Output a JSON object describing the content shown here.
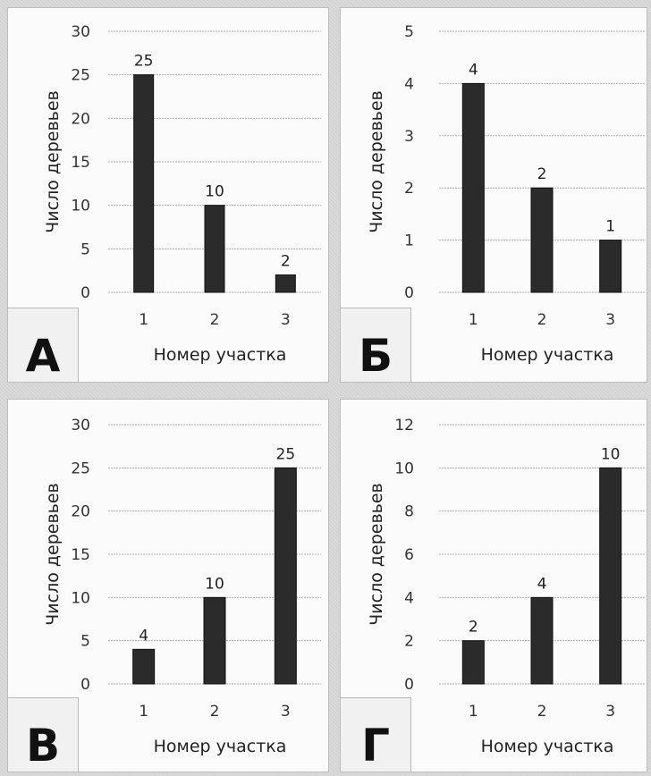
{
  "chart_data": [
    {
      "panel": "А",
      "type": "bar",
      "categories": [
        "1",
        "2",
        "3"
      ],
      "values": [
        25,
        10,
        2
      ],
      "data_labels": [
        "25",
        "10",
        "2"
      ],
      "xlabel": "Номер участка",
      "ylabel": "Число деревьев",
      "ylim": [
        0,
        30
      ],
      "yticks": [
        "0",
        "5",
        "10",
        "15",
        "20",
        "25",
        "30"
      ],
      "grid": true
    },
    {
      "panel": "Б",
      "type": "bar",
      "categories": [
        "1",
        "2",
        "3"
      ],
      "values": [
        4,
        2,
        1
      ],
      "data_labels": [
        "4",
        "2",
        "1"
      ],
      "xlabel": "Номер участка",
      "ylabel": "Число деревьев",
      "ylim": [
        0,
        5
      ],
      "yticks": [
        "0",
        "1",
        "2",
        "3",
        "4",
        "5"
      ],
      "grid": true
    },
    {
      "panel": "В",
      "type": "bar",
      "categories": [
        "1",
        "2",
        "3"
      ],
      "values": [
        4,
        10,
        25
      ],
      "data_labels": [
        "4",
        "10",
        "25"
      ],
      "xlabel": "Номер участка",
      "ylabel": "Число деревьев",
      "ylim": [
        0,
        30
      ],
      "yticks": [
        "0",
        "5",
        "10",
        "15",
        "20",
        "25",
        "30"
      ],
      "grid": true
    },
    {
      "panel": "Г",
      "type": "bar",
      "categories": [
        "1",
        "2",
        "3"
      ],
      "values": [
        2,
        4,
        10
      ],
      "data_labels": [
        "2",
        "4",
        "10"
      ],
      "xlabel": "Номер участка",
      "ylabel": "Число деревьев",
      "ylim": [
        0,
        12
      ],
      "yticks": [
        "0",
        "2",
        "4",
        "6",
        "8",
        "10",
        "12"
      ],
      "grid": true
    }
  ],
  "colors": {
    "bar": "#2b2b2b",
    "grid": "#b0b0b0",
    "background": "#fbfbfb"
  }
}
